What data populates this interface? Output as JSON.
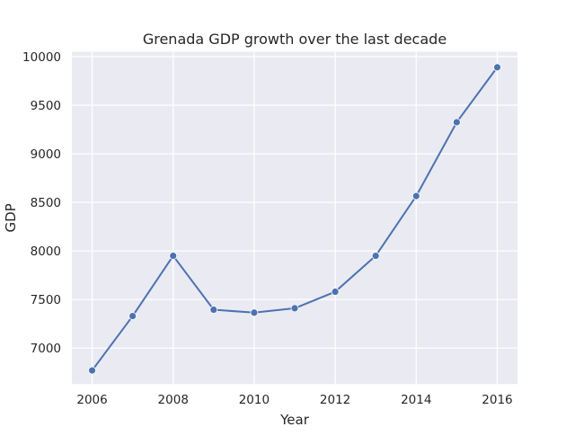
{
  "chart_data": {
    "type": "line",
    "title": "Grenada GDP growth over the last decade",
    "xlabel": "Year",
    "ylabel": "GDP",
    "x": [
      2006,
      2007,
      2008,
      2009,
      2010,
      2011,
      2012,
      2013,
      2014,
      2015,
      2016
    ],
    "series": [
      {
        "values": [
          6770,
          7330,
          7950,
          7395,
          7365,
          7410,
          7580,
          7950,
          8565,
          9325,
          9890
        ]
      }
    ],
    "xlim": [
      2005.5,
      2016.5
    ],
    "ylim": [
      6630,
      10050
    ],
    "x_ticks": [
      2006,
      2008,
      2010,
      2012,
      2014,
      2016
    ],
    "y_ticks": [
      7000,
      7500,
      8000,
      8500,
      9000,
      9500,
      10000
    ],
    "grid": true,
    "legend": "none",
    "colors": {
      "line": "#4c72b0",
      "plot_background": "#eaeaf2",
      "grid": "#ffffff",
      "text": "#262626"
    }
  }
}
